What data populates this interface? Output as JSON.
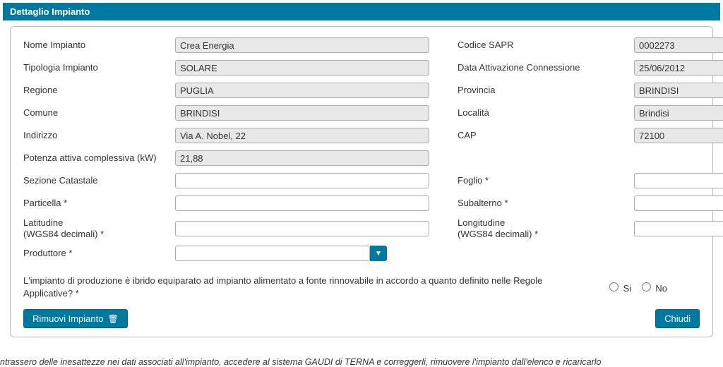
{
  "panel": {
    "title": "Dettaglio Impianto"
  },
  "labels": {
    "nome_impianto": "Nome Impianto",
    "tipologia_impianto": "Tipologia Impianto",
    "regione": "Regione",
    "comune": "Comune",
    "indirizzo": "Indirizzo",
    "potenza": "Potenza attiva complessiva (kW)",
    "sezione_catastale": "Sezione Catastale",
    "particella": "Particella *",
    "latitudine": "Latitudine\n(WGS84 decimali) *",
    "produttore": "Produttore *",
    "codice_sapr": "Codice SAPR",
    "data_attivazione": "Data Attivazione Connessione",
    "provincia": "Provincia",
    "localita": "Località",
    "cap": "CAP",
    "foglio": "Foglio *",
    "subalterno": "Subalterno *",
    "longitudine": "Longitudine\n(WGS84 decimali) *"
  },
  "values": {
    "nome_impianto": "Crea Energia",
    "tipologia_impianto": "SOLARE",
    "regione": "PUGLIA",
    "comune": "BRINDISI",
    "indirizzo": "Via A. Nobel, 22",
    "potenza": "21,88",
    "sezione_catastale": "",
    "particella": "",
    "latitudine": "",
    "produttore": "",
    "codice_sapr": "0002273",
    "data_attivazione": "25/06/2012",
    "provincia": "BRINDISI",
    "localita": "Brindisi",
    "cap": "72100",
    "foglio": "",
    "subalterno": "",
    "longitudine": ""
  },
  "question": {
    "text": "L'impianto di produzione è ibrido equiparato ad impianto alimentato a fonte rinnovabile in accordo a quanto definito nelle Regole Applicative? *",
    "opt_si": "Si",
    "opt_no": "No"
  },
  "buttons": {
    "rimuovi": "Rimuovi Impianto",
    "chiudi": "Chiudi"
  },
  "footer": {
    "note": "ntrassero delle inesattezze nei dati associati all'impianto, accedere al sistema GAUDI di TERNA e correggerli, rimuovere l'impianto dall'elenco e ricaricarlo"
  }
}
